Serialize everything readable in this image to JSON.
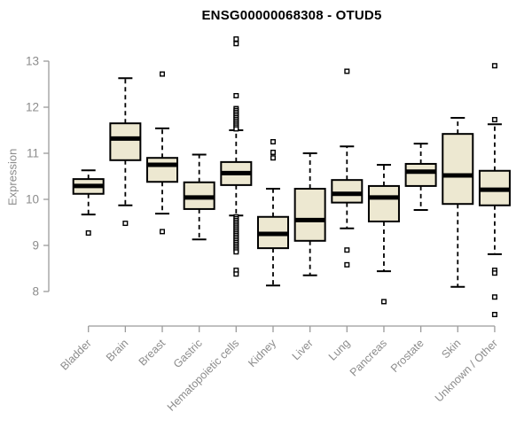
{
  "chart_data": {
    "type": "boxplot",
    "title": "ENSG00000068308 - OTUD5",
    "xlabel": "",
    "ylabel": "Expression",
    "ylim": [
      8,
      13
    ],
    "yticks": [
      8,
      9,
      10,
      11,
      12,
      13
    ],
    "grid": false,
    "legend": false,
    "colors": {
      "box_fill": "#EDE8D1",
      "box_stroke": "#000000",
      "median": "#000000",
      "whisker": "#000000",
      "axis": "#9B9B9B",
      "tick_label": "#8C8C8C",
      "title": "#000000"
    },
    "categories": [
      "Bladder",
      "Brain",
      "Breast",
      "Gastric",
      "Hematopoietic cells",
      "Kidney",
      "Liver",
      "Lung",
      "Pancreas",
      "Prostate",
      "Skin",
      "Unknown / Other"
    ],
    "boxes": [
      {
        "category": "Bladder",
        "low": 9.67,
        "q1": 10.12,
        "median": 10.29,
        "q3": 10.44,
        "high": 10.63,
        "outliers": [
          9.27
        ]
      },
      {
        "category": "Brain",
        "low": 9.87,
        "q1": 10.85,
        "median": 11.32,
        "q3": 11.65,
        "high": 12.63,
        "outliers": [
          9.48
        ]
      },
      {
        "category": "Breast",
        "low": 9.69,
        "q1": 10.38,
        "median": 10.75,
        "q3": 10.9,
        "high": 11.54,
        "outliers": [
          12.72,
          9.3
        ]
      },
      {
        "category": "Gastric",
        "low": 9.13,
        "q1": 9.79,
        "median": 10.04,
        "q3": 10.37,
        "high": 10.97,
        "outliers": []
      },
      {
        "category": "Hematopoietic cells",
        "low": 9.65,
        "q1": 10.31,
        "median": 10.57,
        "q3": 10.81,
        "high": 11.5,
        "outliers": [
          13.48,
          13.38,
          12.25,
          11.97,
          11.93,
          11.89,
          11.85,
          11.81,
          11.77,
          11.73,
          11.69,
          11.65,
          11.61,
          11.57,
          11.53,
          9.62,
          9.58,
          9.54,
          9.5,
          9.46,
          9.42,
          9.38,
          9.34,
          9.3,
          9.26,
          9.22,
          9.18,
          9.14,
          9.1,
          9.06,
          9.02,
          8.98,
          8.94,
          8.9,
          8.86,
          8.46,
          8.38
        ]
      },
      {
        "category": "Kidney",
        "low": 8.13,
        "q1": 8.94,
        "median": 9.25,
        "q3": 9.62,
        "high": 10.23,
        "outliers": [
          11.25,
          11.02,
          10.9
        ]
      },
      {
        "category": "Liver",
        "low": 8.35,
        "q1": 9.1,
        "median": 9.55,
        "q3": 10.23,
        "high": 11.0,
        "outliers": []
      },
      {
        "category": "Lung",
        "low": 9.37,
        "q1": 9.93,
        "median": 10.12,
        "q3": 10.42,
        "high": 11.15,
        "outliers": [
          12.78,
          8.9,
          8.58
        ]
      },
      {
        "category": "Pancreas",
        "low": 8.44,
        "q1": 9.52,
        "median": 10.04,
        "q3": 10.29,
        "high": 10.75,
        "outliers": [
          7.78
        ]
      },
      {
        "category": "Prostate",
        "low": 9.77,
        "q1": 10.29,
        "median": 10.6,
        "q3": 10.77,
        "high": 11.21,
        "outliers": []
      },
      {
        "category": "Skin",
        "low": 8.1,
        "q1": 9.9,
        "median": 10.52,
        "q3": 11.42,
        "high": 11.77,
        "outliers": []
      },
      {
        "category": "Unknown / Other",
        "low": 8.81,
        "q1": 9.87,
        "median": 10.21,
        "q3": 10.62,
        "high": 11.63,
        "outliers": [
          12.9,
          11.73,
          8.46,
          8.4,
          7.88,
          7.5
        ]
      }
    ]
  }
}
